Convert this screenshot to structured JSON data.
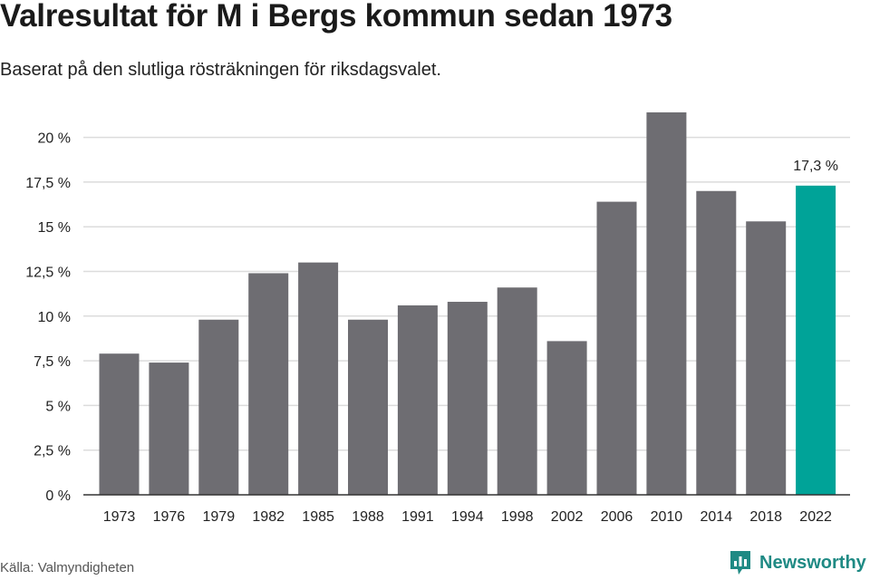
{
  "header": {
    "title": "Valresultat för M i Bergs kommun sedan 1973",
    "subtitle": "Baserat på den slutliga rösträkningen för riksdagsvalet."
  },
  "footer": {
    "source": "Källa: Valmyndigheten",
    "brand": "Newsworthy",
    "brand_icon": "bar-chart-logo-icon"
  },
  "colors": {
    "bar": "#6e6d72",
    "highlight": "#00a398",
    "grid": "#dcdcdc",
    "axis": "#333333",
    "brand": "#1f8a84"
  },
  "chart_data": {
    "type": "bar",
    "categories": [
      "1973",
      "1976",
      "1979",
      "1982",
      "1985",
      "1988",
      "1991",
      "1994",
      "1998",
      "2002",
      "2006",
      "2010",
      "2014",
      "2018",
      "2022"
    ],
    "values": [
      7.9,
      7.4,
      9.8,
      12.4,
      13.0,
      9.8,
      10.6,
      10.8,
      11.6,
      8.6,
      16.4,
      21.4,
      17.0,
      15.3,
      17.3
    ],
    "highlight_index": 14,
    "data_label": "17,3 %",
    "ylim": [
      0,
      22
    ],
    "yticks": [
      0,
      2.5,
      5,
      7.5,
      10,
      12.5,
      15,
      17.5,
      20
    ],
    "ytick_labels": [
      "0 %",
      "2,5 %",
      "5 %",
      "7,5 %",
      "10 %",
      "12,5 %",
      "15 %",
      "17,5 %",
      "20 %"
    ],
    "xlabel": "",
    "ylabel": "",
    "grid": true,
    "legend": "none"
  }
}
